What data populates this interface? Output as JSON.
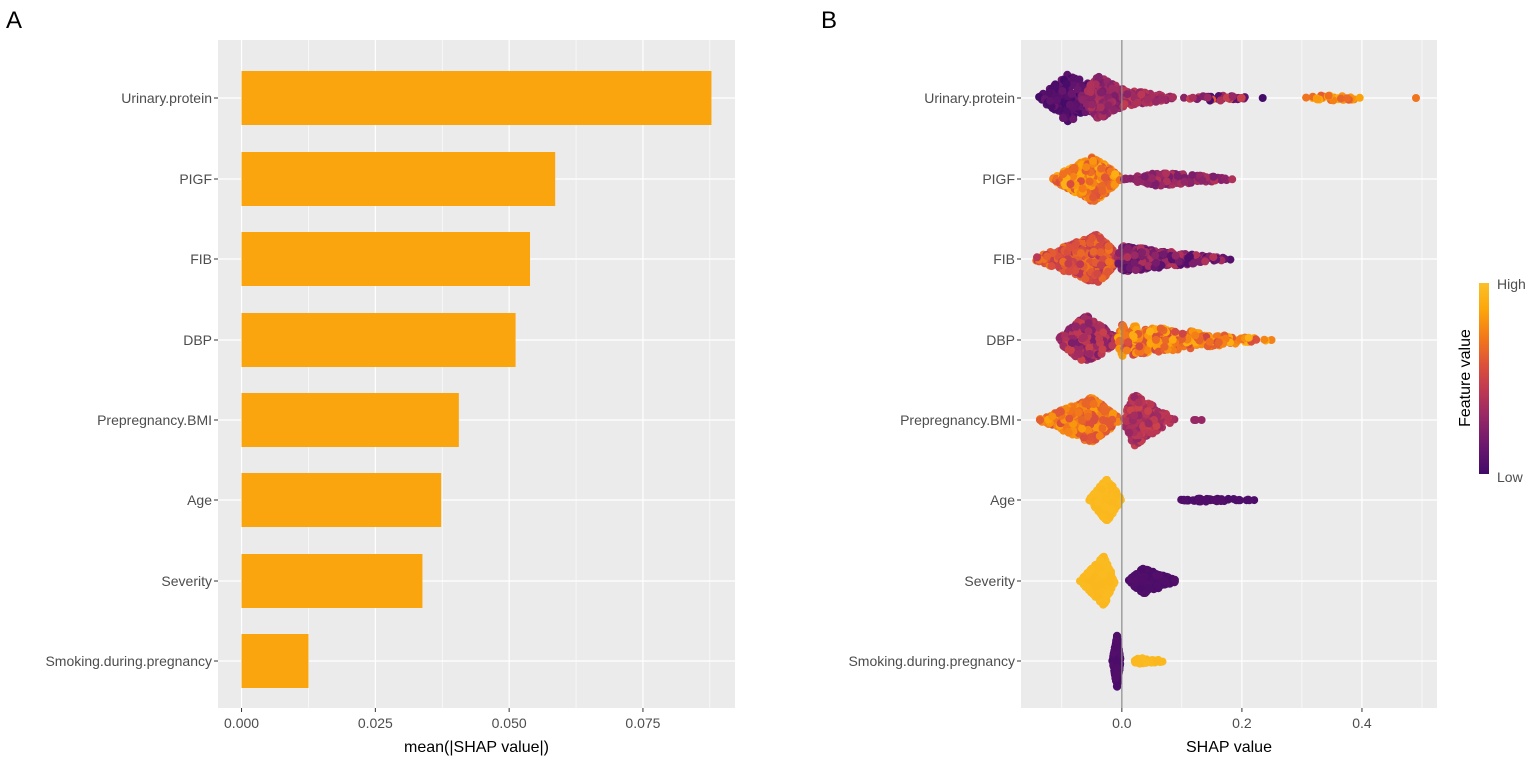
{
  "panels": {
    "a_label": "A",
    "b_label": "B"
  },
  "chart_data": [
    {
      "type": "bar",
      "orientation": "horizontal",
      "categories": [
        "Urinary.protein",
        "PIGF",
        "FIB",
        "DBP",
        "Prepregnancy.BMI",
        "Age",
        "Severity",
        "Smoking.during.pregnancy"
      ],
      "values": [
        0.0878,
        0.0586,
        0.0539,
        0.0512,
        0.0406,
        0.0373,
        0.0338,
        0.0125
      ],
      "xlabel": "mean(|SHAP value|)",
      "ylabel": "",
      "xlim": [
        -0.0044,
        0.0922
      ],
      "xticks": [
        "0.000",
        "0.025",
        "0.050",
        "0.075"
      ],
      "xtick_values": [
        0,
        0.025,
        0.05,
        0.075
      ],
      "bar_color": "#FAA50E",
      "grid": true,
      "background": "#EBEBEB"
    },
    {
      "type": "scatter",
      "subtype": "beeswarm",
      "categories": [
        "Urinary.protein",
        "PIGF",
        "FIB",
        "DBP",
        "Prepregnancy.BMI",
        "Age",
        "Severity",
        "Smoking.during.pregnancy"
      ],
      "xlabel": "SHAP value",
      "xlim": [
        -0.168,
        0.525
      ],
      "xticks": [
        "0.0",
        "0.2",
        "0.4"
      ],
      "xtick_values": [
        0,
        0.2,
        0.4
      ],
      "zero_line": true,
      "grid": true,
      "background": "#EBEBEB",
      "legend": {
        "title": "Feature value",
        "high": "High",
        "low": "Low",
        "placement": "right",
        "colors": [
          "#420A68",
          "#6A176E",
          "#932667",
          "#BC3754",
          "#DD513A",
          "#F37819",
          "#FCA50A",
          "#FAC127"
        ]
      },
      "clusters": [
        [
          {
            "from": -0.14,
            "to": 0.0,
            "peak": -0.09,
            "n": 330,
            "fv": [
              0.0,
              0.15
            ],
            "h": 24
          },
          {
            "from": -0.07,
            "to": 0.03,
            "peak": -0.04,
            "n": 230,
            "fv": [
              0.2,
              0.4
            ],
            "h": 22
          },
          {
            "from": 0.0,
            "to": 0.1,
            "peak": 0.0,
            "n": 90,
            "fv": [
              0.25,
              0.45
            ],
            "h": 9
          },
          {
            "from": 0.1,
            "to": 0.24,
            "peak": 0.15,
            "n": 45,
            "fv": [
              0.0,
              0.6
            ],
            "h": 3
          },
          {
            "from": 0.3,
            "to": 0.44,
            "peak": 0.34,
            "n": 30,
            "fv": [
              0.6,
              0.9
            ],
            "h": 3
          },
          {
            "from": 0.49,
            "to": 0.495,
            "peak": 0.49,
            "n": 1,
            "fv": [
              0.7,
              0.7
            ],
            "h": 0
          }
        ],
        [
          {
            "from": -0.12,
            "to": 0.0,
            "peak": -0.045,
            "n": 420,
            "fv": [
              0.55,
              0.92
            ],
            "h": 24
          },
          {
            "from": 0.0,
            "to": 0.2,
            "peak": 0.06,
            "n": 170,
            "fv": [
              0.2,
              0.4
            ],
            "h": 7
          }
        ],
        [
          {
            "from": -0.15,
            "to": 0.0,
            "peak": -0.04,
            "n": 450,
            "fv": [
              0.4,
              0.72
            ],
            "h": 25
          },
          {
            "from": -0.01,
            "to": 0.19,
            "peak": 0.0,
            "n": 280,
            "fv": [
              0.05,
              0.4
            ],
            "h": 13
          }
        ],
        [
          {
            "from": -0.11,
            "to": 0.0,
            "peak": -0.06,
            "n": 330,
            "fv": [
              0.2,
              0.5
            ],
            "h": 25
          },
          {
            "from": -0.01,
            "to": 0.25,
            "peak": 0.0,
            "n": 330,
            "fv": [
              0.5,
              0.92
            ],
            "h": 16
          }
        ],
        [
          {
            "from": -0.14,
            "to": 0.0,
            "peak": -0.05,
            "n": 380,
            "fv": [
              0.55,
              0.85
            ],
            "h": 23
          },
          {
            "from": 0.0,
            "to": 0.09,
            "peak": 0.02,
            "n": 300,
            "fv": [
              0.28,
              0.5
            ],
            "h": 26
          },
          {
            "from": 0.11,
            "to": 0.15,
            "peak": 0.12,
            "n": 3,
            "fv": [
              0.3,
              0.3
            ],
            "h": 0
          }
        ],
        [
          {
            "from": -0.055,
            "to": 0.0,
            "peak": -0.025,
            "n": 300,
            "fv": [
              0.95,
              0.97
            ],
            "h": 22
          },
          {
            "from": 0.09,
            "to": 0.24,
            "peak": 0.14,
            "n": 60,
            "fv": [
              0.03,
              0.06
            ],
            "h": 2
          }
        ],
        [
          {
            "from": -0.07,
            "to": -0.01,
            "peak": -0.03,
            "n": 330,
            "fv": [
              0.95,
              0.97
            ],
            "h": 25
          },
          {
            "from": 0.01,
            "to": 0.095,
            "peak": 0.035,
            "n": 220,
            "fv": [
              0.03,
              0.06
            ],
            "h": 13
          }
        ],
        [
          {
            "from": -0.016,
            "to": -0.002,
            "peak": -0.008,
            "n": 280,
            "fv": [
              0.03,
              0.06
            ],
            "h": 26
          },
          {
            "from": 0.015,
            "to": 0.08,
            "peak": 0.03,
            "n": 60,
            "fv": [
              0.95,
              0.97
            ],
            "h": 3
          }
        ]
      ]
    }
  ]
}
